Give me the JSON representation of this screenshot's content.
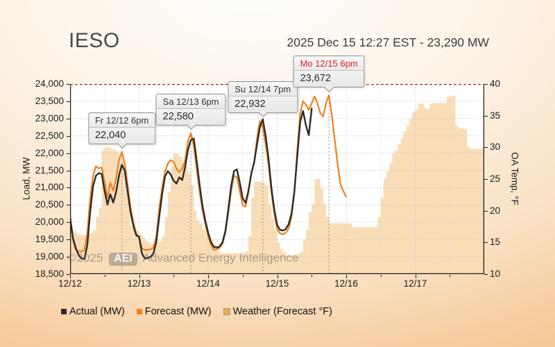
{
  "header": {
    "title": "IESO",
    "timestamp": "2025 Dec 15 12:27 EST - 23,290 MW"
  },
  "watermark": {
    "prefix": "©2025",
    "badge": "AEI",
    "suffix": "Advanced Energy Intelligence"
  },
  "chart_data": {
    "type": "line",
    "hours_total": 144,
    "x_start": "12/12 00:00",
    "x_ticks": [
      {
        "label": "12/12",
        "hour": 0
      },
      {
        "label": "12/13",
        "hour": 24
      },
      {
        "label": "12/14",
        "hour": 48
      },
      {
        "label": "12/15",
        "hour": 72
      },
      {
        "label": "12/16",
        "hour": 96
      },
      {
        "label": "12/17",
        "hour": 120
      }
    ],
    "minor_tick_hours": [
      12,
      36,
      60,
      84,
      108,
      132
    ],
    "y_left": {
      "label": "Load, MW",
      "min": 18500,
      "max": 24000,
      "ticks": [
        {
          "label": "24,000",
          "value": 24000
        },
        {
          "label": "23,500",
          "value": 23500
        },
        {
          "label": "23,000",
          "value": 23000
        },
        {
          "label": "22,500",
          "value": 22500
        },
        {
          "label": "22,000",
          "value": 22000
        },
        {
          "label": "21,500",
          "value": 21500
        },
        {
          "label": "21,000",
          "value": 21000
        },
        {
          "label": "20,500",
          "value": 20500
        },
        {
          "label": "20,000",
          "value": 20000
        },
        {
          "label": "19,500",
          "value": 19500
        },
        {
          "label": "19,000",
          "value": 19000
        },
        {
          "label": "18,500",
          "value": 18500
        }
      ]
    },
    "y_right": {
      "label": "OA Temp, °F",
      "min": 10,
      "max": 40,
      "ticks": [
        {
          "label": "40",
          "value": 40
        },
        {
          "label": "35",
          "value": 35
        },
        {
          "label": "30",
          "value": 30
        },
        {
          "label": "25",
          "value": 25
        },
        {
          "label": "20",
          "value": 20
        },
        {
          "label": "15",
          "value": 15
        },
        {
          "label": "10",
          "value": 10
        }
      ]
    },
    "peak_line_color": "#a03a36",
    "series": [
      {
        "name": "Actual (MW)",
        "axis": "left",
        "render": "line",
        "color": "#2b2b2b",
        "legend_color": "#2b2b2b",
        "width": 2.4,
        "start_hour": 0,
        "step_hours": 1,
        "values": [
          20150,
          19550,
          19250,
          19050,
          18950,
          18940,
          19350,
          20300,
          21050,
          21350,
          21420,
          21400,
          20900,
          20510,
          20810,
          20570,
          20870,
          21350,
          21660,
          21500,
          20900,
          20300,
          19900,
          19620,
          19580,
          19100,
          18950,
          18970,
          19000,
          19100,
          19450,
          20150,
          20810,
          21320,
          21480,
          21380,
          21200,
          21120,
          21300,
          21220,
          21600,
          22100,
          22380,
          22420,
          21800,
          21100,
          20500,
          20050,
          19700,
          19420,
          19290,
          19270,
          19300,
          19420,
          19750,
          20350,
          21050,
          21480,
          21530,
          21150,
          20700,
          20560,
          20900,
          21400,
          21730,
          22250,
          22750,
          22980,
          22500,
          21840,
          21000,
          20360,
          19920,
          19780,
          19760,
          19800,
          19950,
          20250,
          20900,
          21900,
          22900,
          23220,
          22800,
          22520,
          23290
        ]
      },
      {
        "name": "Forecast (MW)",
        "axis": "left",
        "render": "line",
        "color": "#f07f1e",
        "legend_color": "#f07f1e",
        "width": 2.2,
        "start_hour": 0,
        "step_hours": 1,
        "values": [
          20100,
          19500,
          19200,
          19160,
          19150,
          19200,
          19700,
          20700,
          21350,
          21620,
          21560,
          21590,
          21170,
          20710,
          21150,
          20910,
          21250,
          21800,
          22040,
          21700,
          21100,
          20450,
          20000,
          19680,
          19550,
          19250,
          19200,
          19200,
          19220,
          19260,
          19600,
          20400,
          21010,
          21460,
          21700,
          21800,
          21750,
          21550,
          21450,
          21550,
          21800,
          22350,
          22580,
          22200,
          21550,
          20900,
          20350,
          19950,
          19600,
          19350,
          19200,
          19220,
          19260,
          19380,
          19700,
          20250,
          20900,
          21350,
          21300,
          20900,
          20500,
          20450,
          20850,
          21450,
          21700,
          22450,
          22930,
          22750,
          22250,
          21650,
          20850,
          20250,
          19800,
          19680,
          19650,
          19700,
          19820,
          20150,
          20900,
          22100,
          23150,
          23500,
          23400,
          23250,
          23450,
          23640,
          23450,
          23150,
          23060,
          23450,
          23672,
          23100,
          22400,
          21700,
          21100,
          20900,
          20740
        ]
      },
      {
        "name": "Weather (Forecast °F)",
        "axis": "right",
        "render": "step-area",
        "color": "#f9dcb4",
        "legend_color": "#f2a93f",
        "legend_border": "#979797",
        "start_hour": 0,
        "step_hours": 1,
        "values": [
          17,
          16.8,
          16.5,
          16.3,
          16.2,
          16.2,
          16.3,
          16.5,
          17,
          19,
          20.5,
          29.5,
          30,
          30,
          29.8,
          29.6,
          29.4,
          28.5,
          28,
          26,
          22,
          17.5,
          17,
          16.8,
          16.3,
          15.8,
          15.3,
          15,
          14.8,
          14.8,
          15,
          15.3,
          16,
          19,
          23,
          27,
          29,
          29,
          28.5,
          27.5,
          27,
          26,
          24,
          20,
          18.5,
          18,
          17,
          16.5,
          16.3,
          15.5,
          14.5,
          13.8,
          13.4,
          13.3,
          13.3,
          13.3,
          13.3,
          13.3,
          13.3,
          13.3,
          13.4,
          13.6,
          16,
          22,
          24.6,
          24.6,
          24.6,
          24.4,
          24,
          21,
          18.7,
          17,
          15,
          14,
          13.5,
          13,
          13,
          13,
          13,
          13.2,
          13.5,
          15.5,
          17,
          19.8,
          21,
          25,
          25,
          23.5,
          21,
          19,
          18,
          18,
          18,
          18,
          18,
          18,
          18,
          18,
          17.4,
          17.4,
          17.4,
          17.4,
          17.4,
          17.4,
          17.4,
          17.4,
          17.4,
          19,
          22,
          25,
          26.2,
          27.5,
          29,
          29.5,
          30.5,
          31.5,
          32.5,
          33.5,
          34.5,
          35.5,
          36,
          36.9,
          36.9,
          36.2,
          36,
          36.9,
          37,
          37,
          37,
          37,
          37,
          38,
          38.1,
          38.1,
          33.4,
          33,
          33,
          32.8,
          30.1,
          29.8,
          29.8,
          29.8,
          29.8,
          29.8,
          29.8
        ]
      }
    ],
    "annotations": [
      {
        "label": "Fr 12/12 6pm",
        "value": "22,040",
        "hour": 18,
        "mw": 22040,
        "highlight": false
      },
      {
        "label": "Sa 12/13 6pm",
        "value": "22,580",
        "hour": 42,
        "mw": 22580,
        "highlight": false
      },
      {
        "label": "Su 12/14 7pm",
        "value": "22,932",
        "hour": 67,
        "mw": 22932,
        "highlight": false
      },
      {
        "label": "Mo 12/15 6pm",
        "value": "23,672",
        "hour": 90,
        "mw": 23672,
        "highlight": true
      }
    ]
  }
}
